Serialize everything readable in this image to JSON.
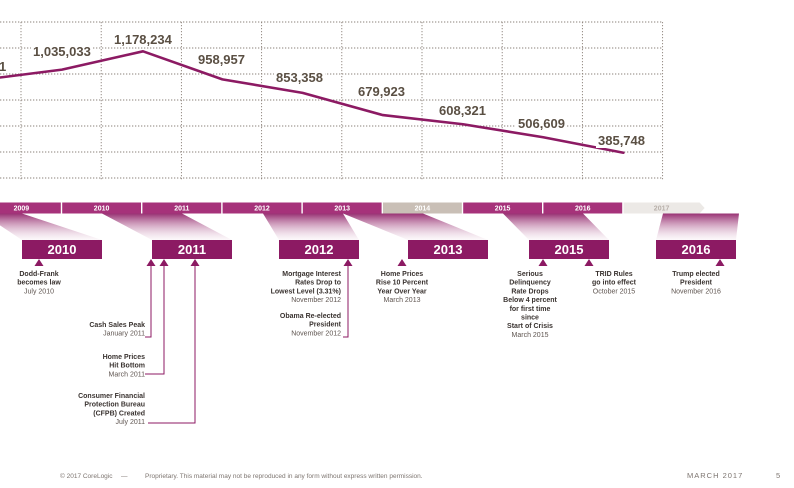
{
  "chart_data": {
    "type": "line",
    "title": "",
    "xlabel": "",
    "ylabel": "",
    "x": [
      "2009",
      "2010",
      "2011",
      "2012",
      "2013",
      "2014",
      "2015",
      "2016"
    ],
    "series": [
      {
        "name": "Value",
        "points": [
          {
            "x": 2009.0,
            "y": 1035033,
            "label": "1,035,033"
          },
          {
            "x": 2010.0,
            "y": 1178234,
            "label": "1,178,234"
          },
          {
            "x": 2011.0,
            "y": 958957,
            "label": "958,957"
          },
          {
            "x": 2012.0,
            "y": 853358,
            "label": "853,358"
          },
          {
            "x": 2013.0,
            "y": 679923,
            "label": "679,923"
          },
          {
            "x": 2014.0,
            "y": 608321,
            "label": "608,321"
          },
          {
            "x": 2015.0,
            "y": 506609,
            "label": "506,609"
          },
          {
            "x": 2016.0,
            "y": 385748,
            "label": "385,748"
          }
        ],
        "cut_off_label": "1"
      }
    ],
    "timeline_ticks": [
      {
        "label": "2009",
        "color": "#a6327a"
      },
      {
        "label": "2010",
        "color": "#a6327a"
      },
      {
        "label": "2011",
        "color": "#a6327a"
      },
      {
        "label": "2012",
        "color": "#a6327a"
      },
      {
        "label": "2013",
        "color": "#a6327a"
      },
      {
        "label": "2014",
        "color": "#c9bfb6"
      },
      {
        "label": "2015",
        "color": "#a6327a"
      },
      {
        "label": "2016",
        "color": "#a6327a"
      },
      {
        "label": "2017",
        "color": "#ece9e6"
      }
    ],
    "year_boxes": [
      "2010",
      "2011",
      "2012",
      "2013",
      "2015",
      "2016"
    ],
    "events": [
      {
        "title": [
          "Dodd-Frank",
          "becomes law"
        ],
        "date": "July 2010"
      },
      {
        "title": [
          "Cash Sales Peak"
        ],
        "date": "January 2011"
      },
      {
        "title": [
          "Home Prices",
          "Hit Bottom"
        ],
        "date": "March 2011"
      },
      {
        "title": [
          "Consumer Financial",
          "Protection Bureau",
          "(CFPB) Created"
        ],
        "date": "July 2011"
      },
      {
        "title": [
          "Mortgage Interest",
          "Rates Drop to",
          "Lowest Level (3.31%)"
        ],
        "date": "November 2012"
      },
      {
        "title": [
          "Obama Re-elected",
          "President"
        ],
        "date": "November 2012"
      },
      {
        "title": [
          "Home Prices",
          "Rise 10 Percent",
          "Year Over Year"
        ],
        "date": "March 2013"
      },
      {
        "title": [
          "Serious",
          "Delinquency",
          "Rate Drops",
          "Below 4 percent",
          "for first time",
          "since",
          "Start of Crisis"
        ],
        "date": "March 2015"
      },
      {
        "title": [
          "TRID Rules",
          "go into effect"
        ],
        "date": "October 2015"
      },
      {
        "title": [
          "Trump elected",
          "President"
        ],
        "date": "November 2016"
      }
    ]
  },
  "footer": {
    "copyright": "© 2017 CoreLogic",
    "dash": "—",
    "notice": "Proprietary. This material may not be reproduced in any form without express written permission.",
    "month": "MARCH 2017",
    "page": "5"
  },
  "colors": {
    "accent": "#8c1a63",
    "accent_light": "#a6327a",
    "grid": "#8a8078",
    "text_dark": "#3a3330",
    "label": "#5a4f43"
  }
}
